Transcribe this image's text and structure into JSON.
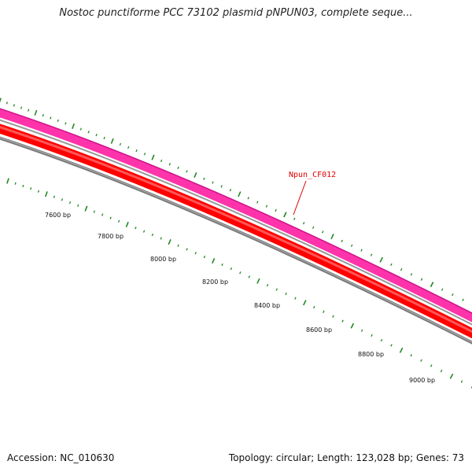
{
  "title": "Nostoc punctiforme PCC 73102 plasmid pNPUN03, complete seque...",
  "footer": {
    "accession": "Accession: NC_010630",
    "summary": "Topology: circular; Length: 123,028 bp; Genes: 73"
  },
  "gene_label": "Npun_CF012",
  "bp_labels": [
    "7600 bp",
    "7800 bp",
    "8000 bp",
    "8200 bp",
    "8400 bp",
    "8600 bp",
    "8800 bp",
    "9000 bp"
  ],
  "colors": {
    "gene_feature": "#ff33aa",
    "cds_feature": "#ff0000",
    "backbone": "#808080",
    "tick": "#228822",
    "label": "#dd0000"
  }
}
